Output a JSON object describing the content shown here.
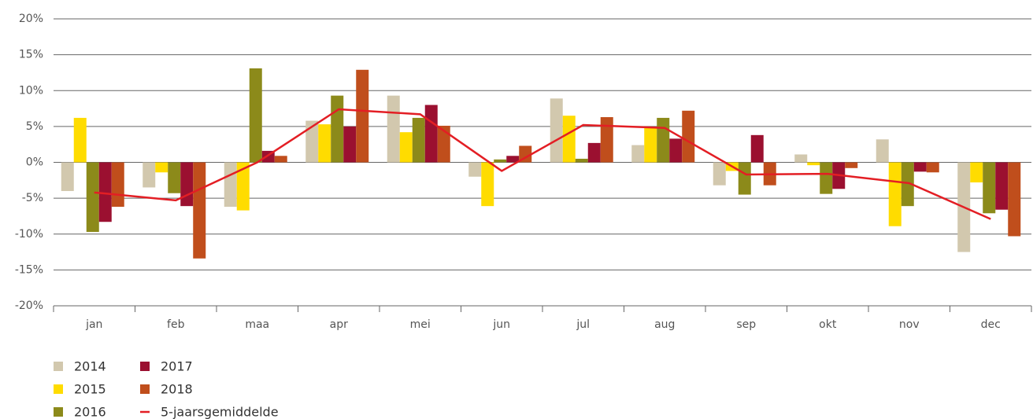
{
  "chart_data": {
    "type": "bar",
    "categories": [
      "jan",
      "feb",
      "maa",
      "apr",
      "mei",
      "jun",
      "jul",
      "aug",
      "sep",
      "okt",
      "nov",
      "dec"
    ],
    "series": [
      {
        "name": "2014",
        "color": "#d2c8ae",
        "values": [
          -4,
          -3.5,
          -6.2,
          5.8,
          9.3,
          -2,
          8.9,
          2.4,
          -3.2,
          1.1,
          3.2,
          -12.5
        ]
      },
      {
        "name": "2015",
        "color": "#ffdc00",
        "values": [
          6.2,
          -1.4,
          -6.7,
          5.3,
          4.2,
          -6.1,
          6.5,
          4.8,
          -1.2,
          -0.4,
          -8.9,
          -2.8
        ]
      },
      {
        "name": "2016",
        "color": "#8c8a1a",
        "values": [
          -9.7,
          -4.3,
          13.1,
          9.3,
          6.2,
          0.4,
          0.5,
          6.2,
          -4.5,
          -4.4,
          -6.1,
          -7.1
        ]
      },
      {
        "name": "2017",
        "color": "#9b1030",
        "values": [
          -8.3,
          -6.1,
          1.6,
          5,
          8,
          0.9,
          2.7,
          3.3,
          3.8,
          -3.7,
          -1.3,
          -6.6
        ]
      },
      {
        "name": "2018",
        "color": "#c04e1c",
        "values": [
          -6.2,
          -13.4,
          0.9,
          12.9,
          5.1,
          2.3,
          6.3,
          7.2,
          -3.2,
          -0.8,
          -1.4,
          -10.3
        ]
      },
      {
        "name": "5-jaarsgemiddelde",
        "color": "#e31e24",
        "type": "line",
        "values": [
          -4.2,
          -5.3,
          0,
          7.4,
          6.7,
          -1.2,
          5.2,
          4.8,
          -1.7,
          -1.6,
          -2.9,
          -7.9
        ]
      }
    ],
    "ylim": [
      -20,
      20
    ],
    "yticks": [
      {
        "value": -20,
        "label": "-20%"
      },
      {
        "value": -15,
        "label": "-15%"
      },
      {
        "value": -10,
        "label": "-10%"
      },
      {
        "value": -5,
        "label": "-5%"
      },
      {
        "value": 0,
        "label": "0%"
      },
      {
        "value": 5,
        "label": "5%"
      },
      {
        "value": 10,
        "label": "10%"
      },
      {
        "value": 15,
        "label": "15%"
      },
      {
        "value": 20,
        "label": "20%"
      }
    ],
    "grid": true,
    "legend": "bottom-left"
  }
}
